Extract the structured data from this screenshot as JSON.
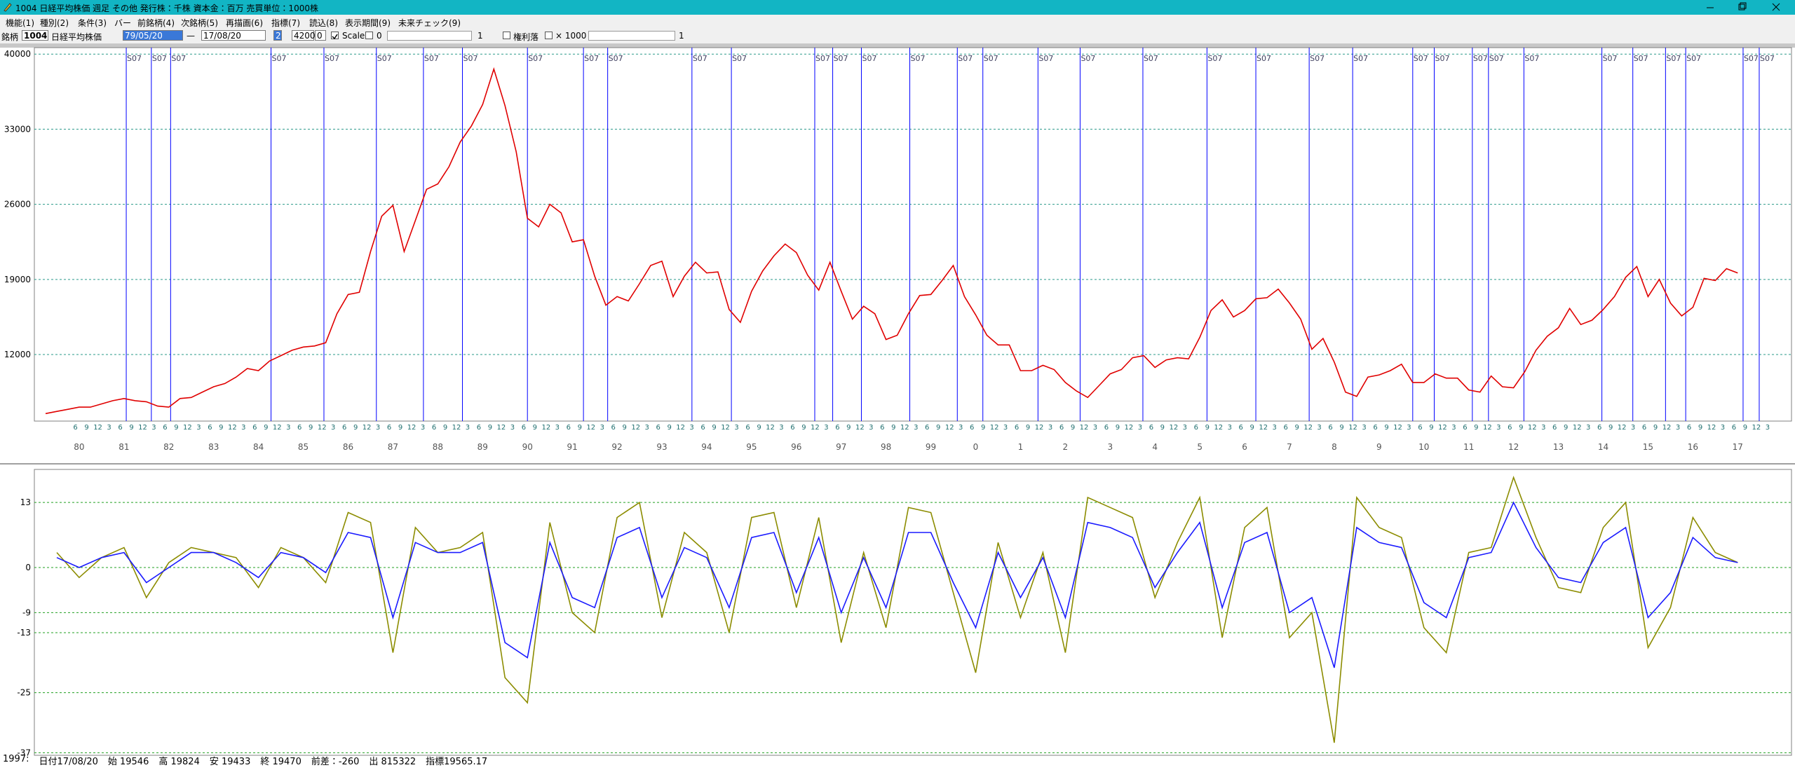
{
  "window": {
    "title": "1004 日経平均株価 週足 その他 発行株：千株 資本金：百万 売買単位：1000株"
  },
  "menu": [
    "機能(1)",
    "種別(2)",
    "条件(3)",
    "バー",
    "前銘柄(4)",
    "次銘柄(5)",
    "再描画(6)",
    "指標(7)",
    "読込(8)",
    "表示期間(9)",
    "未来チェック(9)"
  ],
  "toolbar": {
    "code_label": "銘柄",
    "code": "1004",
    "name": "日経平均株価",
    "date_from": "79/05/20",
    "range_sep": "—",
    "date_to": "17/08/20",
    "period": "2",
    "count": "4200",
    "offset": "0",
    "scale_label": "Scale",
    "scale_value": "0",
    "slider1_value": "1",
    "ex_rights_label": "権利落",
    "multiplier_label": "× 1000",
    "slider2_value": "1"
  },
  "chart_data": [
    {
      "type": "line",
      "color": "#e00000",
      "grid": true,
      "xlim": [
        1979.5,
        2018.7
      ],
      "ylim": [
        5800,
        40600
      ],
      "yticks": [
        40000,
        33000,
        26000,
        19000,
        12000
      ],
      "xticks": [
        {
          "value": 1980,
          "label": "80"
        },
        {
          "value": 1981,
          "label": "81"
        },
        {
          "value": 1982,
          "label": "82"
        },
        {
          "value": 1983,
          "label": "83"
        },
        {
          "value": 1984,
          "label": "84"
        },
        {
          "value": 1985,
          "label": "85"
        },
        {
          "value": 1986,
          "label": "86"
        },
        {
          "value": 1987,
          "label": "87"
        },
        {
          "value": 1988,
          "label": "88"
        },
        {
          "value": 1989,
          "label": "89"
        },
        {
          "value": 1990,
          "label": "90"
        },
        {
          "value": 1991,
          "label": "91"
        },
        {
          "value": 1992,
          "label": "92"
        },
        {
          "value": 1993,
          "label": "93"
        },
        {
          "value": 1994,
          "label": "94"
        },
        {
          "value": 1995,
          "label": "95"
        },
        {
          "value": 1996,
          "label": "96"
        },
        {
          "value": 1997,
          "label": "97"
        },
        {
          "value": 1998,
          "label": "98"
        },
        {
          "value": 1999,
          "label": "99"
        },
        {
          "value": 2000,
          "label": "0"
        },
        {
          "value": 2001,
          "label": "1"
        },
        {
          "value": 2002,
          "label": "2"
        },
        {
          "value": 2003,
          "label": "3"
        },
        {
          "value": 2004,
          "label": "4"
        },
        {
          "value": 2005,
          "label": "5"
        },
        {
          "value": 2006,
          "label": "6"
        },
        {
          "value": 2007,
          "label": "7"
        },
        {
          "value": 2008,
          "label": "8"
        },
        {
          "value": 2009,
          "label": "9"
        },
        {
          "value": 2010,
          "label": "10"
        },
        {
          "value": 2011,
          "label": "11"
        },
        {
          "value": 2012,
          "label": "12"
        },
        {
          "value": 2013,
          "label": "13"
        },
        {
          "value": 2014,
          "label": "14"
        },
        {
          "value": 2015,
          "label": "15"
        },
        {
          "value": 2016,
          "label": "16"
        },
        {
          "value": 2017,
          "label": "17"
        }
      ],
      "month_ticks": [
        {
          "value": 6,
          "label": "6"
        },
        {
          "value": 9,
          "label": "9"
        },
        {
          "value": 12,
          "label": "12"
        },
        {
          "value": 15,
          "label": "3"
        }
      ],
      "markers": {
        "label": "S07",
        "color": "#0000ff",
        "x": [
          1981.55,
          1982.11,
          1982.54,
          1984.78,
          1985.96,
          1987.13,
          1988.18,
          1989.05,
          1990.5,
          1991.75,
          1992.29,
          1994.17,
          1995.05,
          1996.91,
          1997.31,
          1997.95,
          1999.03,
          2000.09,
          2000.66,
          2001.89,
          2002.83,
          2004.23,
          2005.66,
          2006.75,
          2007.94,
          2008.91,
          2010.25,
          2010.73,
          2011.58,
          2011.94,
          2012.73,
          2014.47,
          2015.16,
          2015.89,
          2016.34,
          2017.62,
          2017.98
        ]
      },
      "x": [
        1979.75,
        1980,
        1980.25,
        1980.5,
        1980.75,
        1981,
        1981.25,
        1981.5,
        1981.75,
        1982,
        1982.25,
        1982.5,
        1982.75,
        1983,
        1983.25,
        1983.5,
        1983.75,
        1984,
        1984.25,
        1984.5,
        1984.75,
        1985,
        1985.25,
        1985.5,
        1985.75,
        1986,
        1986.25,
        1986.5,
        1986.75,
        1987,
        1987.25,
        1987.5,
        1987.75,
        1988,
        1988.25,
        1988.5,
        1988.75,
        1989,
        1989.25,
        1989.5,
        1989.75,
        1990,
        1990.25,
        1990.5,
        1990.75,
        1991,
        1991.25,
        1991.5,
        1991.75,
        1992,
        1992.25,
        1992.5,
        1992.75,
        1993,
        1993.25,
        1993.5,
        1993.75,
        1994,
        1994.25,
        1994.5,
        1994.75,
        1995,
        1995.25,
        1995.5,
        1995.75,
        1996,
        1996.25,
        1996.5,
        1996.75,
        1997,
        1997.25,
        1997.5,
        1997.75,
        1998,
        1998.25,
        1998.5,
        1998.75,
        1999,
        1999.25,
        1999.5,
        1999.75,
        2000,
        2000.25,
        2000.5,
        2000.75,
        2001,
        2001.25,
        2001.5,
        2001.75,
        2002,
        2002.25,
        2002.5,
        2002.75,
        2003,
        2003.25,
        2003.5,
        2003.75,
        2004,
        2004.25,
        2004.5,
        2004.75,
        2005,
        2005.25,
        2005.5,
        2005.75,
        2006,
        2006.25,
        2006.5,
        2006.75,
        2007,
        2007.25,
        2007.5,
        2007.75,
        2008,
        2008.25,
        2008.5,
        2008.75,
        2009,
        2009.25,
        2009.5,
        2009.75,
        2010,
        2010.25,
        2010.5,
        2010.75,
        2011,
        2011.25,
        2011.5,
        2011.75,
        2012,
        2012.25,
        2012.5,
        2012.75,
        2013,
        2013.25,
        2013.5,
        2013.75,
        2014,
        2014.25,
        2014.5,
        2014.75,
        2015,
        2015.25,
        2015.5,
        2015.75,
        2016,
        2016.25,
        2016.5,
        2016.75,
        2017,
        2017.25,
        2017.5
      ],
      "values": [
        6500,
        6700,
        6900,
        7100,
        7100,
        7400,
        7700,
        7900,
        7700,
        7600,
        7200,
        7100,
        7900,
        8000,
        8500,
        9000,
        9300,
        9900,
        10700,
        10500,
        11400,
        11900,
        12400,
        12700,
        12800,
        13100,
        15800,
        17600,
        17800,
        21600,
        24900,
        25900,
        21600,
        24500,
        27400,
        27900,
        29500,
        31800,
        33300,
        35300,
        38600,
        35200,
        30900,
        24700,
        23900,
        26000,
        25200,
        22500,
        22700,
        19300,
        16600,
        17400,
        17000,
        18600,
        20300,
        20700,
        17400,
        19300,
        20600,
        19600,
        19700,
        16200,
        15000,
        17900,
        19800,
        21200,
        22300,
        21500,
        19400,
        18000,
        20600,
        17900,
        15300,
        16500,
        15800,
        13400,
        13800,
        15800,
        17500,
        17600,
        18900,
        20300,
        17400,
        15700,
        13800,
        12900,
        12900,
        10500,
        10500,
        11000,
        10600,
        9400,
        8600,
        8000,
        9100,
        10200,
        10600,
        11700,
        11900,
        10800,
        11500,
        11700,
        11600,
        13600,
        16100,
        17100,
        15500,
        16100,
        17200,
        17300,
        18100,
        16800,
        15300,
        12500,
        13500,
        11300,
        8500,
        8100,
        9900,
        10100,
        10500,
        11100,
        9400,
        9400,
        10200,
        9800,
        9800,
        8700,
        8500,
        10000,
        9000,
        8900,
        10400,
        12400,
        13700,
        14500,
        16300,
        14800,
        15200,
        16200,
        17400,
        19200,
        20200,
        17400,
        19000,
        16800,
        15600,
        16400,
        19100,
        18900,
        20000,
        19600
      ]
    },
    {
      "type": "line",
      "grid": true,
      "xlim": [
        1979.5,
        2018.7
      ],
      "ylim": [
        -37.5,
        19.6
      ],
      "yticks": [
        13,
        0,
        -9,
        -13,
        -25,
        -37
      ],
      "x": [
        1980,
        1980.5,
        1981,
        1981.5,
        1982,
        1982.5,
        1983,
        1983.5,
        1984,
        1984.5,
        1985,
        1985.5,
        1986,
        1986.5,
        1987,
        1987.5,
        1988,
        1988.5,
        1989,
        1989.5,
        1990,
        1990.5,
        1991,
        1991.5,
        1992,
        1992.5,
        1993,
        1993.5,
        1994,
        1994.5,
        1995,
        1995.5,
        1996,
        1996.5,
        1997,
        1997.5,
        1998,
        1998.5,
        1999,
        1999.5,
        2000,
        2000.5,
        2001,
        2001.5,
        2002,
        2002.5,
        2003,
        2003.5,
        2004,
        2004.5,
        2005,
        2005.5,
        2006,
        2006.5,
        2007,
        2007.5,
        2008,
        2008.5,
        2009,
        2009.5,
        2010,
        2010.5,
        2011,
        2011.5,
        2012,
        2012.5,
        2013,
        2013.5,
        2014,
        2014.5,
        2015,
        2015.5,
        2016,
        2016.5,
        2017,
        2017.5
      ],
      "series": [
        {
          "color": "#8c8c00",
          "values": [
            3,
            -2,
            2,
            4,
            -6,
            1,
            4,
            3,
            2,
            -4,
            4,
            2,
            -3,
            11,
            9,
            -17,
            8,
            3,
            4,
            7,
            -22,
            -27,
            9,
            -9,
            -13,
            10,
            13,
            -10,
            7,
            3,
            -13,
            10,
            11,
            -8,
            10,
            -15,
            3,
            -12,
            12,
            11,
            -5,
            -21,
            5,
            -10,
            3,
            -17,
            14,
            12,
            10,
            -6,
            5,
            14,
            -14,
            8,
            12,
            -14,
            -9,
            -35,
            14,
            8,
            6,
            -12,
            -17,
            3,
            4,
            18,
            6,
            -4,
            -5,
            8,
            13,
            -16,
            -8,
            10,
            3,
            1
          ]
        },
        {
          "color": "#1a1aff",
          "values": [
            2,
            0,
            2,
            3,
            -3,
            0,
            3,
            3,
            1,
            -2,
            3,
            2,
            -1,
            7,
            6,
            -10,
            5,
            3,
            3,
            5,
            -15,
            -18,
            5,
            -6,
            -8,
            6,
            8,
            -6,
            4,
            2,
            -8,
            6,
            7,
            -5,
            6,
            -9,
            2,
            -8,
            7,
            7,
            -3,
            -12,
            3,
            -6,
            2,
            -10,
            9,
            8,
            6,
            -4,
            3,
            9,
            -8,
            5,
            7,
            -9,
            -6,
            -20,
            8,
            5,
            4,
            -7,
            -10,
            2,
            3,
            13,
            4,
            -2,
            -3,
            5,
            8,
            -10,
            -5,
            6,
            2,
            1
          ]
        }
      ]
    }
  ],
  "status": [
    "1997:",
    "日付17/08/20",
    "始 19546",
    "高 19824",
    "安 19433",
    "終 19470",
    "前差：-260",
    "出 815322",
    "指標19565.17"
  ]
}
